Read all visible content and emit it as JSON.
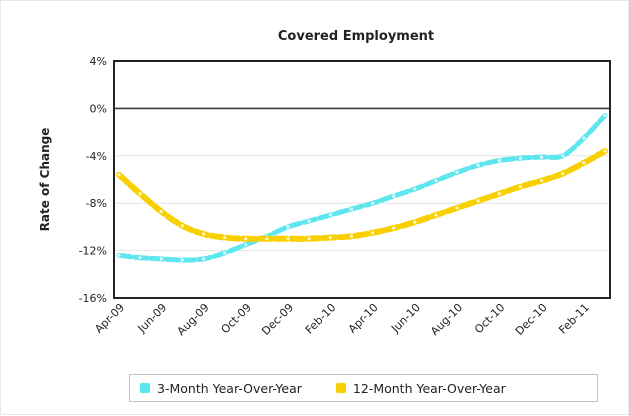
{
  "chart_data": {
    "type": "line",
    "title": "Covered Employment",
    "xlabel": "",
    "ylabel": "Rate of Change",
    "categories": [
      "Apr-09",
      "May-09",
      "Jun-09",
      "Jul-09",
      "Aug-09",
      "Sep-09",
      "Oct-09",
      "Nov-09",
      "Dec-09",
      "Jan-10",
      "Feb-10",
      "Mar-10",
      "Apr-10",
      "May-10",
      "Jun-10",
      "Jul-10",
      "Aug-10",
      "Sep-10",
      "Oct-10",
      "Nov-10",
      "Dec-10",
      "Jan-11",
      "Feb-11",
      "Mar-11"
    ],
    "tick_labels": [
      "Apr-09",
      "Jun-09",
      "Aug-09",
      "Oct-09",
      "Dec-09",
      "Feb-10",
      "Apr-10",
      "Jun-10",
      "Aug-10",
      "Oct-10",
      "Dec-10",
      "Feb-11"
    ],
    "y_ticks": [
      "4%",
      "0%",
      "-4%",
      "-8%",
      "-12%",
      "-16%"
    ],
    "ylim": [
      -16,
      4
    ],
    "grid": true,
    "legend_position": "bottom",
    "series": [
      {
        "name": "3-Month Year-Over-Year",
        "color": "#5ee6ee",
        "values": [
          -12.4,
          -12.6,
          -12.7,
          -12.8,
          -12.7,
          -12.2,
          -11.5,
          -10.8,
          -10.0,
          -9.5,
          -9.0,
          -8.5,
          -8.0,
          -7.4,
          -6.8,
          -6.1,
          -5.4,
          -4.8,
          -4.4,
          -4.2,
          -4.1,
          -4.0,
          -2.5,
          -0.6
        ]
      },
      {
        "name": "12-Month Year-Over-Year",
        "color": "#f8d000",
        "values": [
          -5.6,
          -7.2,
          -8.7,
          -9.9,
          -10.6,
          -10.9,
          -11.0,
          -11.0,
          -11.0,
          -11.0,
          -10.9,
          -10.8,
          -10.5,
          -10.1,
          -9.6,
          -9.0,
          -8.4,
          -7.8,
          -7.2,
          -6.6,
          -6.1,
          -5.5,
          -4.6,
          -3.6
        ]
      }
    ]
  }
}
